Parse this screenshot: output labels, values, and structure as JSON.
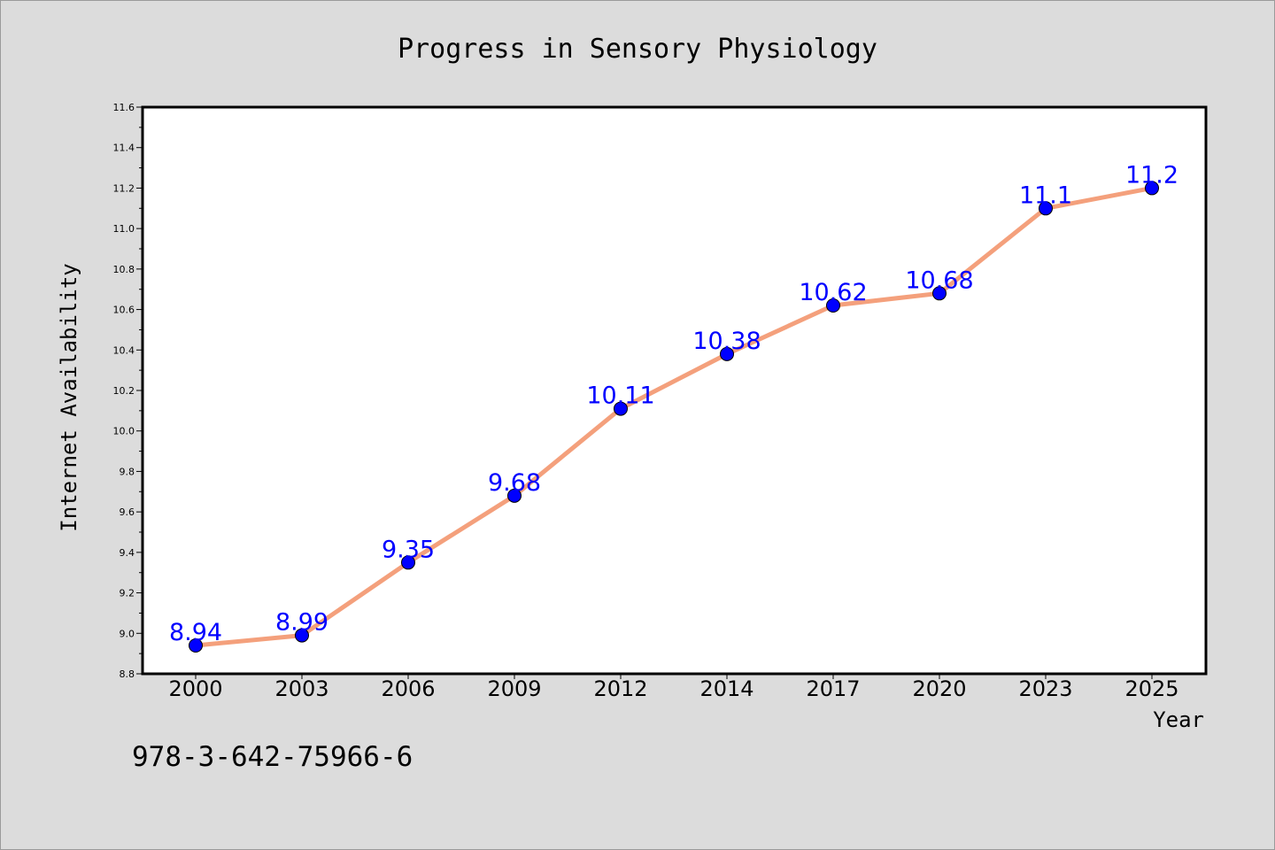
{
  "chart_data": {
    "type": "line",
    "title": "Progress in Sensory Physiology",
    "xlabel": "Year",
    "ylabel": "Internet Availability",
    "categories": [
      "2000",
      "2003",
      "2006",
      "2009",
      "2012",
      "2014",
      "2017",
      "2020",
      "2023",
      "2025"
    ],
    "series": [
      {
        "values": [
          8.94,
          8.99,
          9.35,
          9.68,
          10.11,
          10.38,
          10.62,
          10.68,
          11.1,
          11.2
        ]
      }
    ],
    "data_labels": [
      "8.94",
      "8.99",
      "9.35",
      "9.68",
      "10.11",
      "10.38",
      "10.62",
      "10.68",
      "11.1",
      "11.2"
    ],
    "ylim": [
      8.8,
      11.6
    ],
    "yticks": [
      "8.8",
      "9.0",
      "9.2",
      "9.4",
      "9.6",
      "9.8",
      "10.0",
      "10.2",
      "10.4",
      "10.6",
      "10.8",
      "11.0",
      "11.2",
      "11.4",
      "11.6"
    ],
    "grid": false,
    "colors": {
      "line": "#f4a07c",
      "marker": "#0000ff",
      "label": "#0000ff",
      "plot_bg": "#ffffff",
      "figure_bg": "#dcdcdc"
    }
  },
  "footer": {
    "isbn": "978-3-642-75966-6"
  }
}
